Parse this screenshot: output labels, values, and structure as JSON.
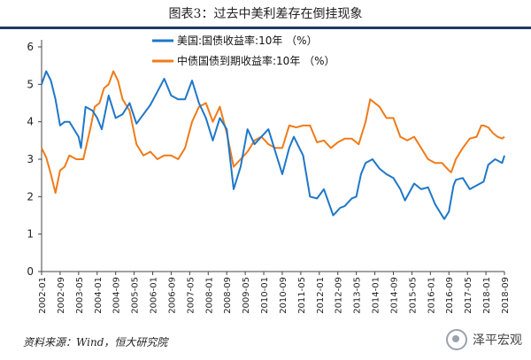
{
  "title": "图表3：过去中美利差存在倒挂现象",
  "source": "资料来源：Wind，恒大研究院",
  "watermark": {
    "text": "泽平宏观",
    "icon": "wechat-icon"
  },
  "colors": {
    "us": "#1f77c9",
    "cn": "#f07b19",
    "rule": "#1f3a64"
  },
  "chart_data": {
    "type": "line",
    "ylim": [
      0,
      6
    ],
    "yticks": [
      0,
      1,
      2,
      3,
      4,
      5,
      6
    ],
    "xlabel": "",
    "ylabel": "",
    "legend_position": "top-center",
    "grid": false,
    "xticks": [
      "2002-01",
      "2002-09",
      "2003-05",
      "2004-01",
      "2004-09",
      "2005-05",
      "2006-01",
      "2006-09",
      "2007-05",
      "2008-01",
      "2008-09",
      "2009-05",
      "2010-01",
      "2010-09",
      "2011-05",
      "2012-01",
      "2012-09",
      "2013-05",
      "2014-01",
      "2014-09",
      "2015-05",
      "2016-01",
      "2016-09",
      "2017-05",
      "2018-01",
      "2018-09"
    ],
    "series": [
      {
        "name": "美国:国债收益率:10年 （%）",
        "color": "#1f77c9",
        "points": [
          [
            "2002-01",
            5.0
          ],
          [
            "2002-03",
            5.35
          ],
          [
            "2002-05",
            5.1
          ],
          [
            "2002-07",
            4.6
          ],
          [
            "2002-09",
            3.9
          ],
          [
            "2002-11",
            4.0
          ],
          [
            "2003-01",
            4.0
          ],
          [
            "2003-03",
            3.8
          ],
          [
            "2003-05",
            3.6
          ],
          [
            "2003-06",
            3.3
          ],
          [
            "2003-08",
            4.4
          ],
          [
            "2003-11",
            4.3
          ],
          [
            "2004-01",
            4.1
          ],
          [
            "2004-03",
            3.8
          ],
          [
            "2004-06",
            4.7
          ],
          [
            "2004-09",
            4.1
          ],
          [
            "2004-12",
            4.2
          ],
          [
            "2005-03",
            4.5
          ],
          [
            "2005-06",
            3.95
          ],
          [
            "2005-09",
            4.2
          ],
          [
            "2005-12",
            4.45
          ],
          [
            "2006-03",
            4.8
          ],
          [
            "2006-06",
            5.15
          ],
          [
            "2006-09",
            4.7
          ],
          [
            "2006-12",
            4.6
          ],
          [
            "2007-03",
            4.6
          ],
          [
            "2007-06",
            5.1
          ],
          [
            "2007-09",
            4.5
          ],
          [
            "2007-12",
            4.1
          ],
          [
            "2008-03",
            3.5
          ],
          [
            "2008-06",
            4.1
          ],
          [
            "2008-09",
            3.8
          ],
          [
            "2008-12",
            2.2
          ],
          [
            "2009-03",
            2.8
          ],
          [
            "2009-06",
            3.8
          ],
          [
            "2009-09",
            3.4
          ],
          [
            "2009-12",
            3.6
          ],
          [
            "2010-03",
            3.8
          ],
          [
            "2010-06",
            3.2
          ],
          [
            "2010-09",
            2.6
          ],
          [
            "2010-12",
            3.3
          ],
          [
            "2011-02",
            3.6
          ],
          [
            "2011-06",
            3.1
          ],
          [
            "2011-09",
            2.0
          ],
          [
            "2011-12",
            1.95
          ],
          [
            "2012-03",
            2.2
          ],
          [
            "2012-07",
            1.5
          ],
          [
            "2012-10",
            1.7
          ],
          [
            "2012-12",
            1.75
          ],
          [
            "2013-03",
            1.95
          ],
          [
            "2013-05",
            2.0
          ],
          [
            "2013-07",
            2.6
          ],
          [
            "2013-09",
            2.9
          ],
          [
            "2013-12",
            3.0
          ],
          [
            "2014-03",
            2.75
          ],
          [
            "2014-06",
            2.6
          ],
          [
            "2014-09",
            2.5
          ],
          [
            "2014-12",
            2.2
          ],
          [
            "2015-02",
            1.9
          ],
          [
            "2015-06",
            2.35
          ],
          [
            "2015-09",
            2.2
          ],
          [
            "2015-12",
            2.25
          ],
          [
            "2016-03",
            1.8
          ],
          [
            "2016-07",
            1.4
          ],
          [
            "2016-09",
            1.6
          ],
          [
            "2016-11",
            2.3
          ],
          [
            "2016-12",
            2.45
          ],
          [
            "2017-03",
            2.5
          ],
          [
            "2017-06",
            2.2
          ],
          [
            "2017-09",
            2.3
          ],
          [
            "2017-12",
            2.4
          ],
          [
            "2018-02",
            2.85
          ],
          [
            "2018-05",
            3.0
          ],
          [
            "2018-08",
            2.9
          ],
          [
            "2018-09",
            3.1
          ]
        ]
      },
      {
        "name": "中债国债到期收益率:10年 （%）",
        "color": "#f07b19",
        "points": [
          [
            "2002-01",
            3.3
          ],
          [
            "2002-03",
            3.05
          ],
          [
            "2002-05",
            2.6
          ],
          [
            "2002-07",
            2.1
          ],
          [
            "2002-09",
            2.7
          ],
          [
            "2002-11",
            2.8
          ],
          [
            "2003-01",
            3.1
          ],
          [
            "2003-04",
            3.0
          ],
          [
            "2003-07",
            3.0
          ],
          [
            "2003-10",
            3.8
          ],
          [
            "2003-12",
            4.4
          ],
          [
            "2004-02",
            4.5
          ],
          [
            "2004-04",
            4.9
          ],
          [
            "2004-06",
            5.0
          ],
          [
            "2004-08",
            5.35
          ],
          [
            "2004-10",
            5.1
          ],
          [
            "2004-12",
            4.6
          ],
          [
            "2005-03",
            4.3
          ],
          [
            "2005-06",
            3.4
          ],
          [
            "2005-09",
            3.1
          ],
          [
            "2005-12",
            3.2
          ],
          [
            "2006-03",
            3.0
          ],
          [
            "2006-06",
            3.1
          ],
          [
            "2006-09",
            3.1
          ],
          [
            "2006-12",
            3.0
          ],
          [
            "2007-03",
            3.3
          ],
          [
            "2007-06",
            4.0
          ],
          [
            "2007-09",
            4.4
          ],
          [
            "2007-12",
            4.5
          ],
          [
            "2008-03",
            4.0
          ],
          [
            "2008-06",
            4.4
          ],
          [
            "2008-09",
            3.7
          ],
          [
            "2008-12",
            2.8
          ],
          [
            "2009-03",
            3.0
          ],
          [
            "2009-06",
            3.2
          ],
          [
            "2009-09",
            3.5
          ],
          [
            "2009-12",
            3.6
          ],
          [
            "2010-03",
            3.4
          ],
          [
            "2010-06",
            3.3
          ],
          [
            "2010-09",
            3.3
          ],
          [
            "2010-12",
            3.9
          ],
          [
            "2011-03",
            3.85
          ],
          [
            "2011-06",
            3.9
          ],
          [
            "2011-09",
            3.9
          ],
          [
            "2011-12",
            3.45
          ],
          [
            "2012-03",
            3.5
          ],
          [
            "2012-06",
            3.3
          ],
          [
            "2012-09",
            3.45
          ],
          [
            "2012-12",
            3.55
          ],
          [
            "2013-03",
            3.55
          ],
          [
            "2013-06",
            3.4
          ],
          [
            "2013-09",
            4.0
          ],
          [
            "2013-11",
            4.6
          ],
          [
            "2013-12",
            4.55
          ],
          [
            "2014-03",
            4.4
          ],
          [
            "2014-06",
            4.1
          ],
          [
            "2014-09",
            4.1
          ],
          [
            "2014-12",
            3.6
          ],
          [
            "2015-03",
            3.5
          ],
          [
            "2015-06",
            3.6
          ],
          [
            "2015-09",
            3.3
          ],
          [
            "2015-12",
            3.0
          ],
          [
            "2016-03",
            2.9
          ],
          [
            "2016-06",
            2.9
          ],
          [
            "2016-09",
            2.7
          ],
          [
            "2016-10",
            2.65
          ],
          [
            "2016-12",
            3.0
          ],
          [
            "2017-03",
            3.3
          ],
          [
            "2017-06",
            3.55
          ],
          [
            "2017-09",
            3.6
          ],
          [
            "2017-11",
            3.9
          ],
          [
            "2017-12",
            3.9
          ],
          [
            "2018-02",
            3.85
          ],
          [
            "2018-04",
            3.7
          ],
          [
            "2018-06",
            3.6
          ],
          [
            "2018-08",
            3.55
          ],
          [
            "2018-09",
            3.6
          ]
        ]
      }
    ]
  }
}
